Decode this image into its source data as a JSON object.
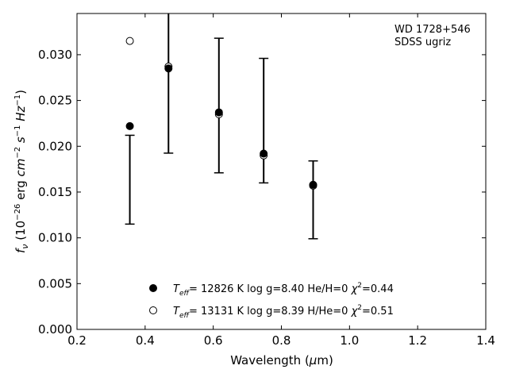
{
  "chart_data": {
    "type": "scatter",
    "annotation": [
      "WD 1728+546",
      "SDSS ugriz"
    ],
    "xlabel": {
      "prefix": "Wavelength (",
      "mu": "μ",
      "suffix": "m)"
    },
    "ylabel": {
      "f": "f",
      "nu": "ν",
      "rest": " (10",
      "e26": "−26",
      "erg": " erg ",
      "cm": "cm",
      "e2": "−2",
      "s": " s",
      "e1": "−1",
      "hz": " Hz",
      "close": ")"
    },
    "xlim": [
      0.2,
      1.4
    ],
    "ylim": [
      0.0,
      0.0345
    ],
    "xticks": [
      0.2,
      0.4,
      0.6,
      0.8,
      1.0,
      1.2,
      1.4
    ],
    "xtick_labels": [
      "0.2",
      "0.4",
      "0.6",
      "0.8",
      "1.0",
      "1.2",
      "1.4"
    ],
    "yticks": [
      0.0,
      0.005,
      0.01,
      0.015,
      0.02,
      0.025,
      0.03
    ],
    "ytick_labels": [
      "0.000",
      "0.005",
      "0.010",
      "0.015",
      "0.020",
      "0.025",
      "0.030"
    ],
    "observed": [
      {
        "x": 0.3551,
        "y": 0.01635,
        "err": 0.00485
      },
      {
        "x": 0.4686,
        "y": 0.0289,
        "err": 0.00965
      },
      {
        "x": 0.6166,
        "y": 0.02445,
        "err": 0.00735
      },
      {
        "x": 0.748,
        "y": 0.0228,
        "err": 0.0068
      },
      {
        "x": 0.8932,
        "y": 0.01415,
        "err": 0.00425
      }
    ],
    "series": [
      {
        "marker": "filled",
        "points": [
          {
            "x": 0.3551,
            "y": 0.0222
          },
          {
            "x": 0.4686,
            "y": 0.0285
          },
          {
            "x": 0.6166,
            "y": 0.0237
          },
          {
            "x": 0.748,
            "y": 0.0192
          },
          {
            "x": 0.8932,
            "y": 0.0158
          }
        ],
        "legend": {
          "T": "T",
          "eff": "eff",
          "mid": "= 12826 K  log g=8.40  He/H=0  ",
          "chi": "χ",
          "sq": "2",
          "val": "=0.44"
        }
      },
      {
        "marker": "open",
        "points": [
          {
            "x": 0.3551,
            "y": 0.0315
          },
          {
            "x": 0.4686,
            "y": 0.0287
          },
          {
            "x": 0.6166,
            "y": 0.0235
          },
          {
            "x": 0.748,
            "y": 0.019
          },
          {
            "x": 0.8932,
            "y": 0.0157
          }
        ],
        "legend": {
          "T": "T",
          "eff": "eff",
          "mid": "= 13131 K  log g=8.39  H/He=0  ",
          "chi": "χ",
          "sq": "2",
          "val": "=0.51"
        }
      }
    ],
    "grid": false,
    "legend_position": "bottom-center"
  }
}
